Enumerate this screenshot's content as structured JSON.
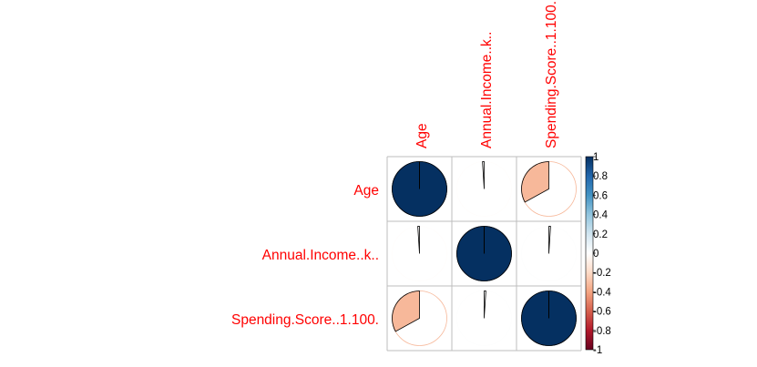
{
  "chart_data": {
    "type": "heatmap",
    "method": "pie",
    "variables": [
      "Age",
      "Annual.Income..k..",
      "Spending.Score..1.100."
    ],
    "column_labels": [
      "Age",
      "Annual.Income..k..",
      "Spending.Score..1.100."
    ],
    "matrix": [
      [
        1.0,
        -0.01,
        -0.33
      ],
      [
        -0.01,
        1.0,
        0.01
      ],
      [
        -0.33,
        0.01,
        1.0
      ]
    ],
    "colorbar": {
      "range": [
        -1,
        1
      ],
      "ticks": [
        "1",
        "0.8",
        "0.6",
        "0.4",
        "0.2",
        "0",
        "-0.2",
        "-0.4",
        "-0.6",
        "-0.8",
        "-1"
      ]
    },
    "colors": {
      "label": "#ff0000",
      "positive_strong": "#053061",
      "negative_strong": "#67001f",
      "grid": "#bebebe",
      "outline": "#000000"
    }
  }
}
